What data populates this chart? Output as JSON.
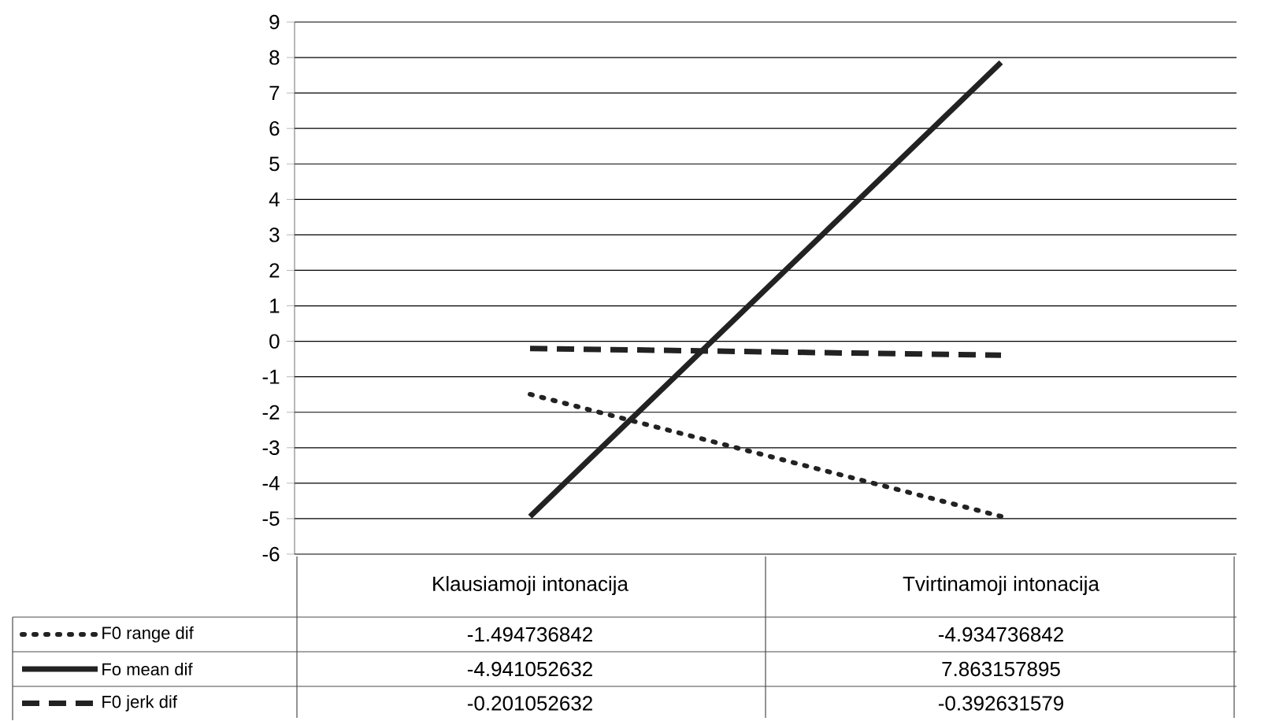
{
  "chart_data": {
    "type": "line",
    "categories": [
      "Klausiamoji intonacija",
      "Tvirtinamoji intonacija"
    ],
    "series": [
      {
        "name": "F0 range dif",
        "color": "#222222",
        "line_style": "dotted",
        "values": [
          -1.494736842,
          -4.934736842
        ]
      },
      {
        "name": "Fo mean dif",
        "color": "#222222",
        "line_style": "solid",
        "values": [
          -4.941052632,
          7.863157895
        ]
      },
      {
        "name": "F0 jerk dif",
        "color": "#222222",
        "line_style": "dashed",
        "values": [
          -0.201052632,
          -0.392631579
        ]
      }
    ],
    "ylim": [
      -6,
      9
    ],
    "yticks": [
      -6,
      -5,
      -4,
      -3,
      -2,
      -1,
      0,
      1,
      2,
      3,
      4,
      5,
      6,
      7,
      8,
      9
    ],
    "grid": "y",
    "legend": "bottom left",
    "data_labels": true
  }
}
